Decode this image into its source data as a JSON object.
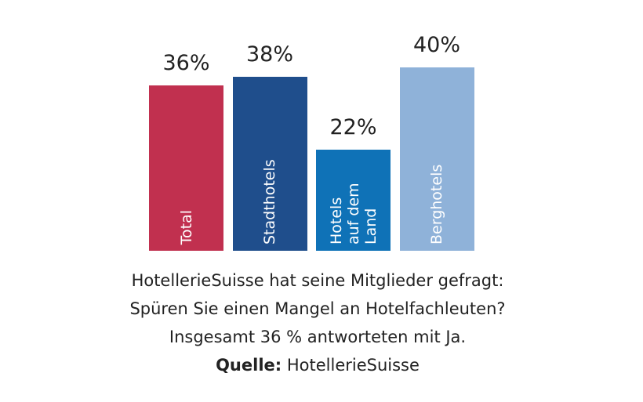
{
  "chart_data": {
    "type": "bar",
    "categories": [
      "Total",
      "Stadthotels",
      "Hotels auf dem Land",
      "Berghotels"
    ],
    "values": [
      36,
      38,
      22,
      40
    ],
    "value_labels": [
      "36%",
      "38%",
      "22%",
      "40%"
    ],
    "colors": [
      "#c1304f",
      "#1f4e8c",
      "#0f72b7",
      "#8fb2d9"
    ]
  },
  "caption": {
    "lines": [
      "HotellerieSuisse hat seine Mitglieder gefragt:",
      "Spüren Sie einen Mangel an Hotelfachleuten?",
      "Insgesamt 36 % antworteten mit Ja."
    ],
    "source_label": "Quelle:",
    "source": "HotellerieSuisse"
  }
}
